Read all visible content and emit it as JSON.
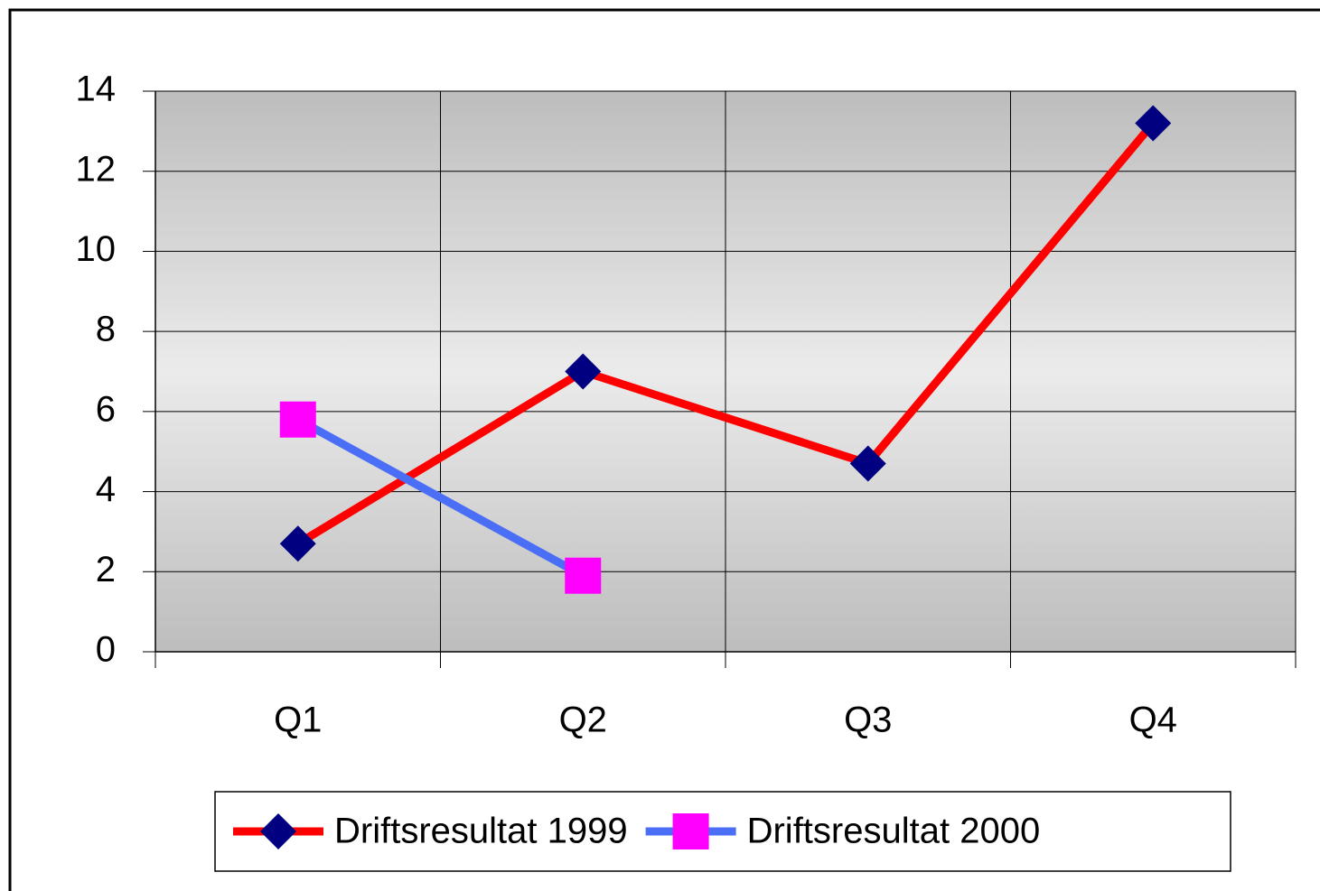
{
  "chart_data": {
    "type": "line",
    "categories": [
      "Q1",
      "Q2",
      "Q3",
      "Q4"
    ],
    "series": [
      {
        "name": "Driftsresultat 1999",
        "color": "#ff0000",
        "marker": "diamond",
        "marker_color": "#000080",
        "values": [
          2.7,
          7.0,
          4.7,
          13.2
        ]
      },
      {
        "name": "Driftsresultat 2000",
        "color": "#4a6ef5",
        "marker": "square",
        "marker_color": "#ff00ff",
        "values": [
          5.8,
          1.9,
          null,
          null
        ]
      }
    ],
    "ylim": [
      0,
      14
    ],
    "yticks": [
      0,
      2,
      4,
      6,
      8,
      10,
      12,
      14
    ],
    "grid": true,
    "legend": "bottom"
  }
}
